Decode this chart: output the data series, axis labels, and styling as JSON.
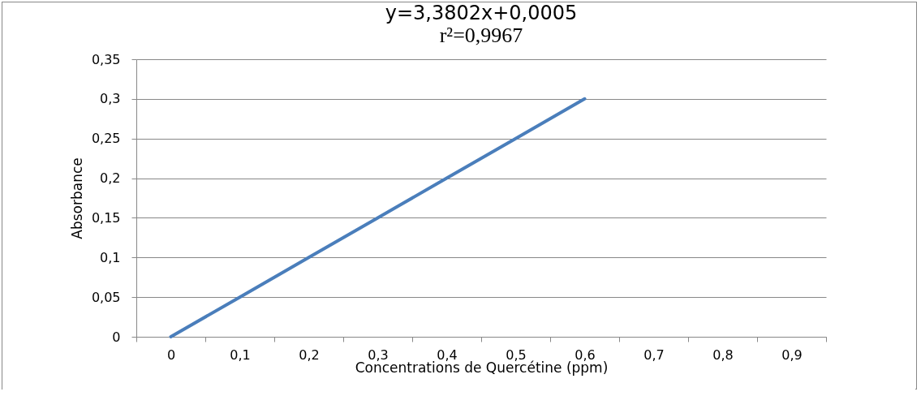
{
  "chart_data": {
    "type": "line",
    "title": "y=3,3802x+0,0005",
    "subtitle": "r²=0,9967",
    "xlabel": "Concentrations de Quercétine (ppm)",
    "ylabel": "Absorbance",
    "categories": [
      "0",
      "0,1",
      "0,2",
      "0,3",
      "0,4",
      "0,5",
      "0,6",
      "0,7",
      "0,8",
      "0,9"
    ],
    "series": [
      {
        "color": "#4a7ebb",
        "values": [
          0,
          0.05,
          0.1,
          0.15,
          0.2,
          0.25,
          0.3,
          null,
          null,
          null
        ]
      }
    ],
    "ylim": [
      0,
      0.35
    ],
    "yticks": [
      {
        "value": 0,
        "label": "0"
      },
      {
        "value": 0.05,
        "label": "0,05"
      },
      {
        "value": 0.1,
        "label": "0,1"
      },
      {
        "value": 0.15,
        "label": "0,15"
      },
      {
        "value": 0.2,
        "label": "0,2"
      },
      {
        "value": 0.25,
        "label": "0,25"
      },
      {
        "value": 0.3,
        "label": "0,3"
      },
      {
        "value": 0.35,
        "label": "0,35"
      }
    ],
    "grid": "y",
    "marker": "none",
    "line_style": "solid"
  }
}
